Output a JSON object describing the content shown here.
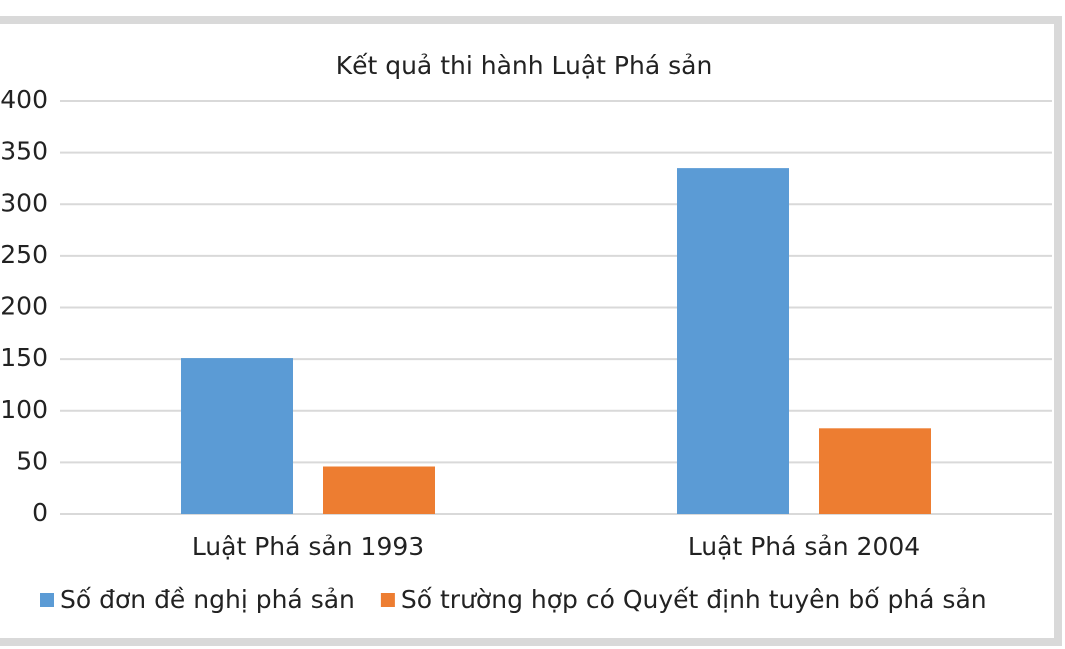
{
  "chart_data": {
    "type": "bar",
    "title": "Kết quả thi hành Luật Phá sản",
    "categories": [
      "Luật  Phá sản 1993",
      "Luật Phá sản 2004"
    ],
    "series": [
      {
        "name": "Số đơn đề nghị phá sản",
        "color": "#5b9bd5",
        "values": [
          151,
          335
        ]
      },
      {
        "name": "Số trường hợp có Quyết định tuyên bố phá sản",
        "color": "#ed7d31",
        "values": [
          46,
          83
        ]
      }
    ],
    "ylim": [
      0,
      400
    ],
    "yticks": [
      0,
      50,
      100,
      150,
      200,
      250,
      300,
      350,
      400
    ],
    "grid": true,
    "legend": "bottom"
  }
}
